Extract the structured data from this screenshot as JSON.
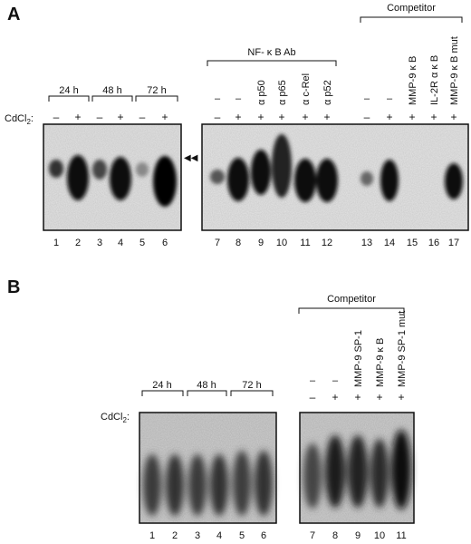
{
  "panels": [
    {
      "letter": "A",
      "treatment_label": "CdCl",
      "treatment_sub": "2",
      "treatment_colon": ":",
      "time_groups": [
        "24 h",
        "48 h",
        "72 h"
      ],
      "left_signs": [
        "–",
        "+",
        "–",
        "+",
        "–",
        "+"
      ],
      "left_lanes": [
        "1",
        "2",
        "3",
        "4",
        "5",
        "6"
      ],
      "ab_bracket": "NF- κ B Ab",
      "competitor_bracket": "Competitor",
      "right_top_labels": [
        "–",
        "–",
        "α p50",
        "α p65",
        "α c-Rel",
        "α p52",
        "–",
        "–",
        "MMP-9 κ B",
        "IL-2R α κ B",
        "MMP-9 κ B mut"
      ],
      "right_signs": [
        "–",
        "+",
        "+",
        "+",
        "+",
        "+",
        "–",
        "+",
        "+",
        "+",
        "+"
      ],
      "right_lanes": [
        "7",
        "8",
        "9",
        "10",
        "11",
        "12",
        "13",
        "14",
        "15",
        "16",
        "17"
      ],
      "arrowheads": "◀◀"
    },
    {
      "letter": "B",
      "treatment_label": "CdCl",
      "treatment_sub": "2",
      "treatment_colon": ":",
      "time_groups": [
        "24 h",
        "48 h",
        "72 h"
      ],
      "left_signs": [
        "–",
        "+",
        "–",
        "+",
        "–",
        "+"
      ],
      "left_lanes": [
        "1",
        "2",
        "3",
        "4",
        "5",
        "6"
      ],
      "competitor_bracket": "Competitor",
      "right_top_labels": [
        "–",
        "–",
        "MMP-9 SP-1",
        "MMP-9 κ B",
        "MMP-9 SP-1 mut"
      ],
      "right_signs": [
        "–",
        "+",
        "+",
        "+",
        "+"
      ],
      "right_lanes": [
        "7",
        "8",
        "9",
        "10",
        "11"
      ]
    }
  ]
}
